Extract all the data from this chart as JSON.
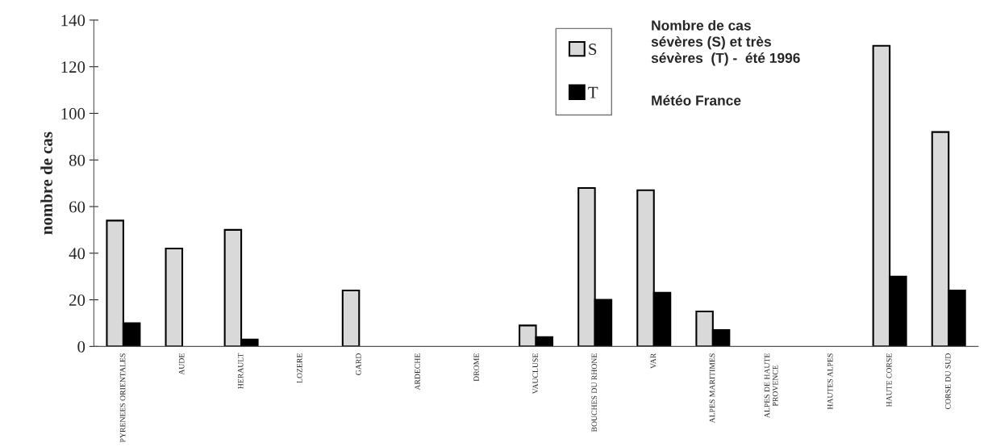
{
  "chart_data": {
    "type": "bar",
    "title": "Nombre de cas\nsévères (S) et très\nsévères  (T) -  été 1996",
    "annotations": [
      "Météo France"
    ],
    "ylabel": "nombre de cas",
    "categories": [
      "PYRENEES ORIENTALES",
      "AUDE",
      "HERAULT",
      "LOZERE",
      "GARD",
      "ARDECHE",
      "DROME",
      "VAUCLUSE",
      "BOUCHES DU RHONE",
      "VAR",
      "ALPES MARITIMES",
      "ALPES DE HAUTE\nPROVENCE",
      "HAUTES ALPES",
      "HAUTE CORSE",
      "CORSE DU SUD"
    ],
    "series": [
      {
        "name": "S",
        "color": "#d9d9d9",
        "values": [
          54,
          42,
          50,
          0,
          24,
          0,
          0,
          9,
          68,
          67,
          15,
          0,
          0,
          129,
          92
        ]
      },
      {
        "name": "T",
        "color": "#000000",
        "values": [
          10,
          0,
          3,
          0,
          0,
          0,
          0,
          4,
          20,
          23,
          7,
          0,
          0,
          30,
          24
        ]
      }
    ],
    "ylim": [
      0,
      140
    ],
    "yticks": [
      0,
      20,
      40,
      60,
      80,
      100,
      120,
      140
    ],
    "grid": false,
    "legend": "top right"
  }
}
